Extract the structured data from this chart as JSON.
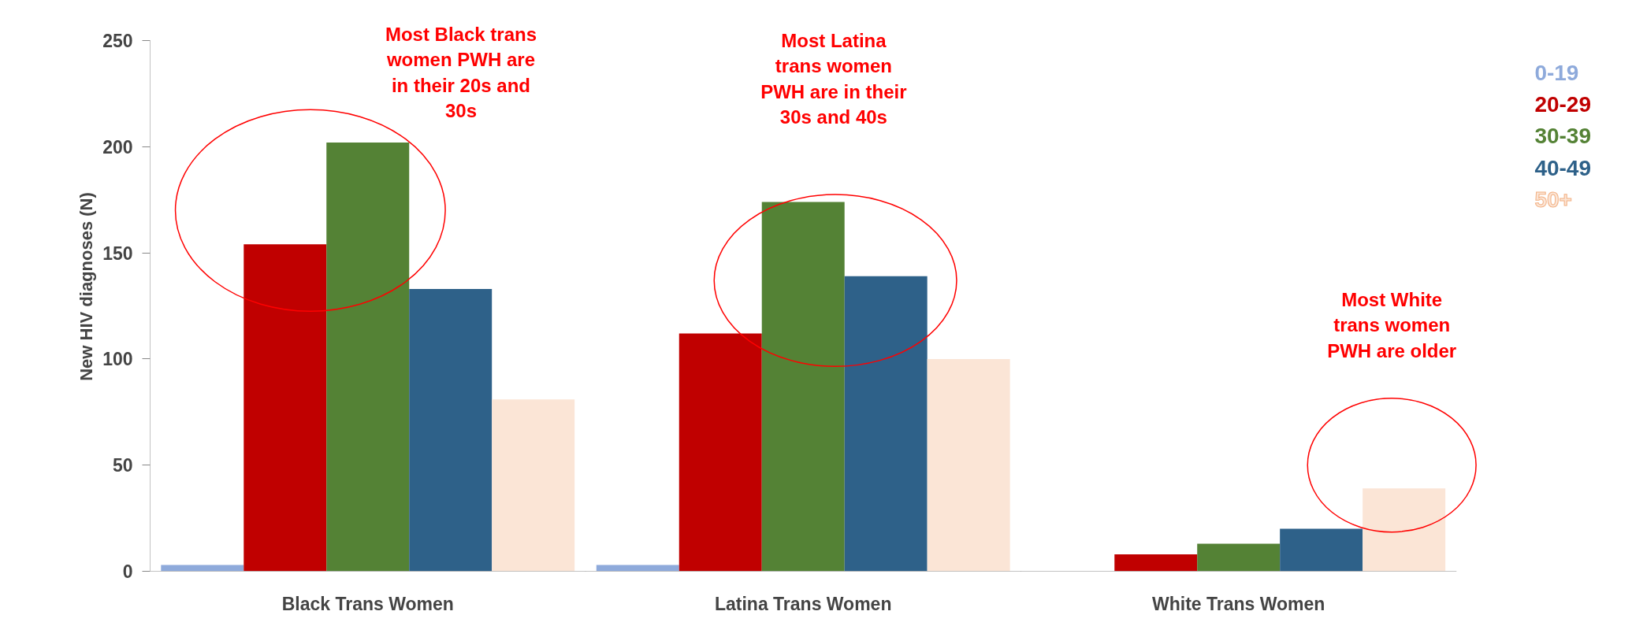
{
  "chart_data": {
    "type": "bar",
    "ylabel": "New HIV diagnoses (N)",
    "categories": [
      "Black Trans Women",
      "Latina Trans Women",
      "White Trans Women"
    ],
    "series": [
      {
        "name": "0-19",
        "color": "#8eaadb",
        "values": [
          3,
          3,
          0
        ]
      },
      {
        "name": "20-29",
        "color": "#c00000",
        "values": [
          154,
          112,
          8
        ]
      },
      {
        "name": "30-39",
        "color": "#548235",
        "values": [
          202,
          174,
          13
        ]
      },
      {
        "name": "40-49",
        "color": "#2e6189",
        "values": [
          133,
          139,
          20
        ]
      },
      {
        "name": "50+",
        "color": "#fbe5d6",
        "values": [
          81,
          100,
          39
        ]
      }
    ],
    "ylim": [
      0,
      250
    ],
    "yticks": [
      0,
      50,
      100,
      150,
      200,
      250
    ],
    "grid": false,
    "annotations": [
      "Most Black trans\nwomen PWH are\nin their 20s and\n30s",
      "Most Latina\ntrans women\nPWH are in their\n30s and 40s",
      "Most White\ntrans women\nPWH are older"
    ]
  }
}
